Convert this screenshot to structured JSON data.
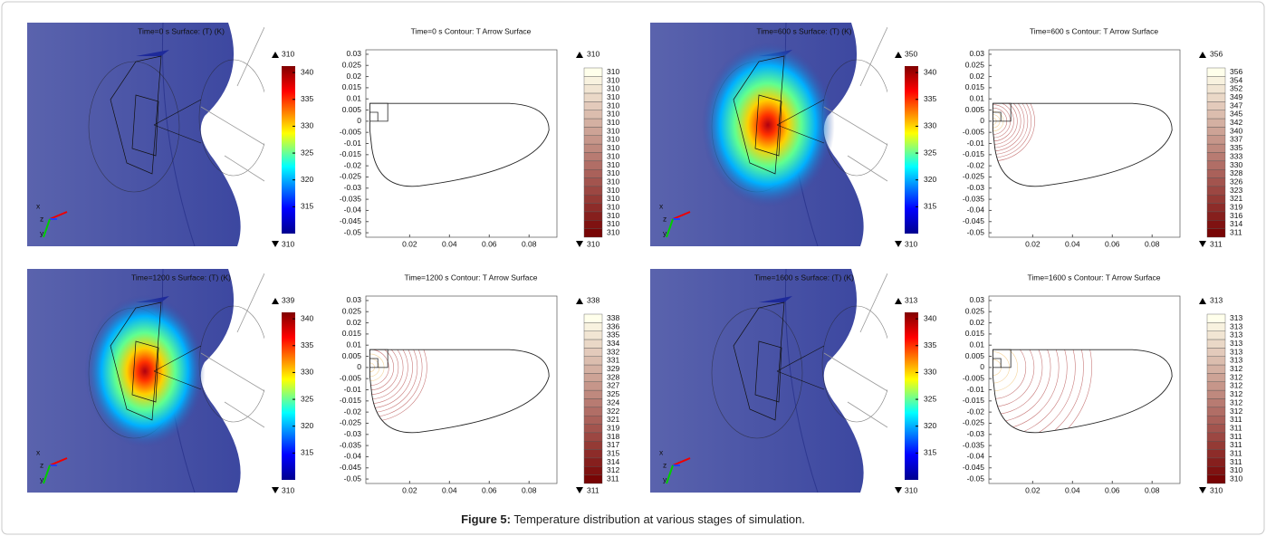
{
  "figure": {
    "caption_label": "Figure 5:",
    "caption_text": "Temperature distribution at various stages of simulation.",
    "colorbar_ticks": [
      340,
      335,
      330,
      325,
      320,
      315
    ],
    "colorbar_lim": [
      310,
      341.2
    ],
    "triad_labels": [
      "x",
      "z",
      "y"
    ],
    "plot_yticks": [
      0.03,
      0.025,
      0.02,
      0.015,
      0.01,
      0.005,
      0,
      -0.005,
      -0.01,
      -0.015,
      -0.02,
      -0.025,
      -0.03,
      -0.035,
      -0.04,
      -0.045,
      -0.05
    ],
    "plot_xticks": [
      0.02,
      0.04,
      0.06,
      0.08
    ],
    "plot_ylim": [
      -0.052,
      0.032
    ],
    "plot_xlim": [
      -0.002,
      0.094
    ],
    "panels": [
      {
        "surface_title": "Time=0 s  Surface: (T) (K)",
        "surface_max": 310,
        "surface_min": 310,
        "contour_title": "Time=0 s  Contour: T  Arrow Surface",
        "contour_max": 310,
        "contour_min": 310,
        "contour_levels": [
          310,
          310,
          310,
          310,
          310,
          310,
          310,
          310,
          310,
          310,
          310,
          310,
          310,
          310,
          310,
          310,
          310,
          310,
          310,
          310
        ]
      },
      {
        "surface_title": "Time=600 s  Surface: (T) (K)",
        "surface_max": 350,
        "surface_min": 310,
        "contour_title": "Time=600 s  Contour: T  Arrow Surface",
        "contour_max": 356,
        "contour_min": 311,
        "contour_levels": [
          356,
          354,
          352,
          349,
          347,
          345,
          342,
          340,
          337,
          335,
          333,
          330,
          328,
          326,
          323,
          321,
          319,
          316,
          314,
          311
        ]
      },
      {
        "surface_title": "Time=1200 s  Surface: (T) (K)",
        "surface_max": 339,
        "surface_min": 310,
        "contour_title": "Time=1200 s  Contour: T  Arrow Surface",
        "contour_max": 338,
        "contour_min": 311,
        "contour_levels": [
          338,
          336,
          335,
          334,
          332,
          331,
          329,
          328,
          327,
          325,
          324,
          322,
          321,
          319,
          318,
          317,
          315,
          314,
          312,
          311
        ]
      },
      {
        "surface_title": "Time=1600 s  Surface: (T) (K)",
        "surface_max": 313,
        "surface_min": 310,
        "contour_title": "Time=1600 s  Contour: T  Arrow Surface",
        "contour_max": 313,
        "contour_min": 310,
        "contour_levels": [
          313,
          313,
          313,
          313,
          313,
          313,
          312,
          312,
          312,
          312,
          312,
          312,
          311,
          311,
          311,
          311,
          311,
          311,
          310,
          310
        ]
      }
    ]
  }
}
